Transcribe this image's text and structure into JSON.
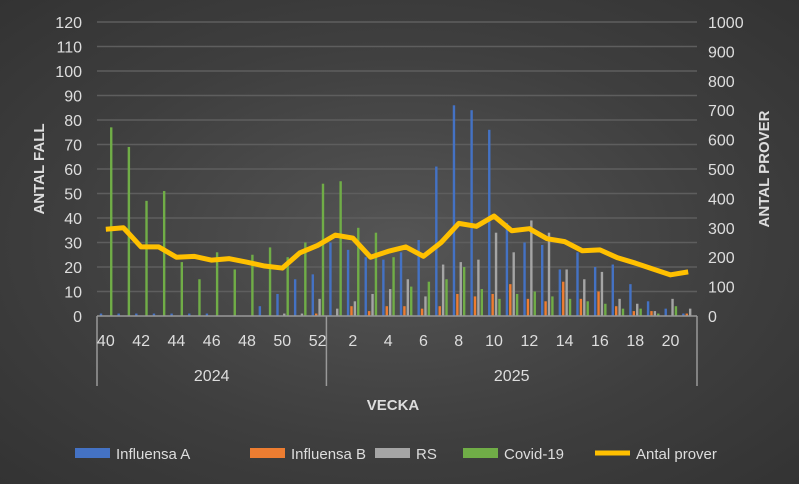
{
  "chart_data": {
    "type": "bar+line",
    "xlabel": "VECKA",
    "ylabel": "ANTAL FALL",
    "y2label": "ANTAL PROVER",
    "ylim": [
      0,
      120
    ],
    "y2lim": [
      0,
      1000
    ],
    "yticks": [
      0,
      10,
      20,
      30,
      40,
      50,
      60,
      70,
      80,
      90,
      100,
      110,
      120
    ],
    "y2ticks": [
      0,
      100,
      200,
      300,
      400,
      500,
      600,
      700,
      800,
      900,
      1000
    ],
    "grid": true,
    "legend": "bottom",
    "groups": [
      {
        "label": "2024",
        "weeks": [
          40,
          41,
          42,
          43,
          44,
          45,
          46,
          47,
          48,
          49,
          50,
          51,
          52
        ]
      },
      {
        "label": "2025",
        "weeks": [
          1,
          2,
          3,
          4,
          5,
          6,
          7,
          8,
          9,
          10,
          11,
          12,
          13,
          14,
          15,
          16,
          17,
          18,
          19,
          20,
          21
        ]
      }
    ],
    "tick_labels": [
      "40",
      "",
      "42",
      "",
      "44",
      "",
      "46",
      "",
      "48",
      "",
      "50",
      "",
      "52",
      "",
      "2",
      "",
      "4",
      "",
      "6",
      "",
      "8",
      "",
      "10",
      "",
      "12",
      "",
      "14",
      "",
      "16",
      "",
      "18",
      "",
      "20",
      ""
    ],
    "series": [
      {
        "name": "Influensa A",
        "type": "bar",
        "axis": "left",
        "color": "#4472c4",
        "values": [
          1,
          1,
          1,
          1,
          1,
          1,
          1,
          0,
          0,
          4,
          9,
          15,
          17,
          30,
          27,
          24,
          23,
          26,
          31,
          61,
          86,
          84,
          76,
          38,
          30,
          29,
          19,
          26,
          20,
          21,
          13,
          6,
          3,
          1
        ]
      },
      {
        "name": "Influensa B",
        "type": "bar",
        "axis": "left",
        "color": "#ed7d31",
        "values": [
          0,
          0,
          0,
          0,
          0,
          0,
          0,
          0,
          0,
          0,
          0,
          0,
          1,
          0,
          4,
          2,
          4,
          4,
          3,
          4,
          9,
          8,
          9,
          13,
          7,
          6,
          14,
          7,
          10,
          4,
          2,
          2,
          0,
          1
        ]
      },
      {
        "name": "RS",
        "type": "bar",
        "axis": "left",
        "color": "#a5a5a5",
        "values": [
          0,
          0,
          0,
          0,
          0,
          0,
          0,
          0,
          0,
          0,
          1,
          1,
          7,
          3,
          6,
          9,
          11,
          15,
          8,
          21,
          22,
          23,
          34,
          26,
          39,
          34,
          19,
          15,
          18,
          7,
          5,
          2,
          7,
          3
        ]
      },
      {
        "name": "Covid-19",
        "type": "bar",
        "axis": "left",
        "color": "#70ad47",
        "values": [
          77,
          69,
          47,
          51,
          22,
          15,
          26,
          19,
          25,
          28,
          24,
          30,
          54,
          55,
          36,
          34,
          24,
          12,
          14,
          15,
          20,
          11,
          7,
          9,
          10,
          8,
          7,
          6,
          5,
          3,
          3,
          1,
          4,
          0
        ]
      },
      {
        "name": "Antal prover",
        "type": "line",
        "axis": "right",
        "color": "#ffc000",
        "values": [
          295,
          300,
          235,
          235,
          200,
          203,
          190,
          195,
          183,
          170,
          163,
          215,
          240,
          275,
          265,
          200,
          220,
          235,
          203,
          250,
          315,
          305,
          340,
          290,
          297,
          263,
          253,
          222,
          225,
          198,
          180,
          160,
          140,
          150
        ]
      }
    ]
  }
}
